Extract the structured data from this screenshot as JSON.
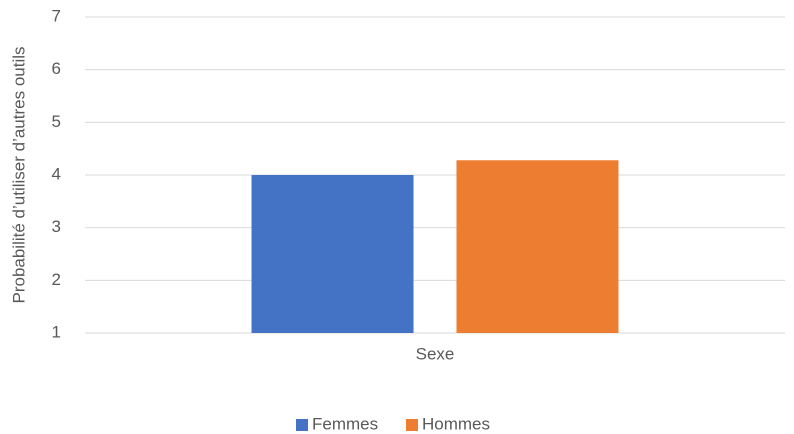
{
  "chart_data": {
    "type": "bar",
    "categories": [
      "Sexe"
    ],
    "series": [
      {
        "name": "Femmes",
        "color": "#4472c4",
        "values": [
          4.0
        ]
      },
      {
        "name": "Hommes",
        "color": "#ed7d31",
        "values": [
          4.28
        ]
      }
    ],
    "y_label": "Probabilité d’utiliser d’autres outils",
    "ylim": [
      1,
      7
    ],
    "yticks": [
      1,
      2,
      3,
      4,
      5,
      6,
      7
    ],
    "grid": true,
    "legend": "bottom"
  }
}
